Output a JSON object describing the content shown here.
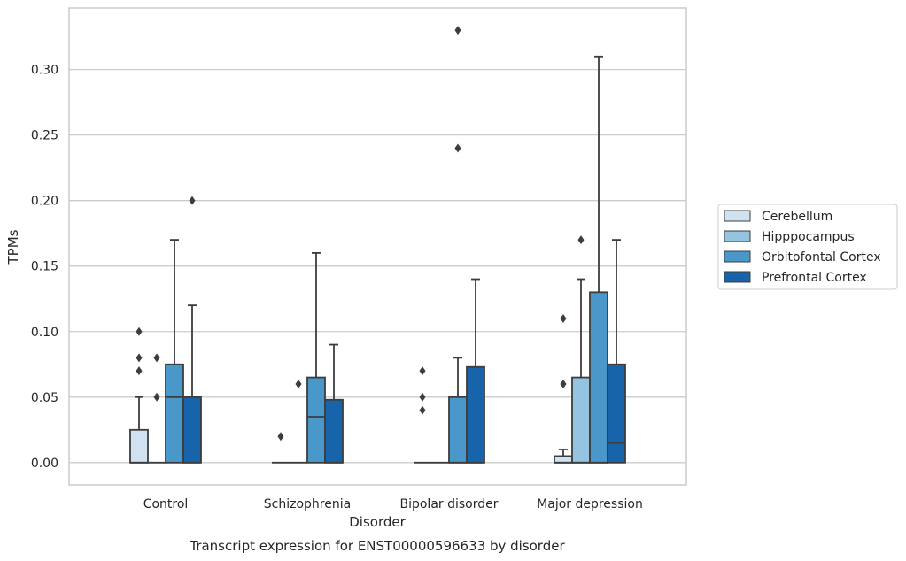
{
  "chart_data": {
    "type": "box",
    "title": "Transcript expression for ENST00000596633 by disorder",
    "xlabel": "Disorder",
    "ylabel": "TPMs",
    "categories": [
      "Control",
      "Schizophrenia",
      "Bipolar disorder",
      "Major depression"
    ],
    "ylim": [
      -0.017,
      0.347
    ],
    "yticks": [
      0.0,
      0.05,
      0.1,
      0.15,
      0.2,
      0.25,
      0.3
    ],
    "ytick_labels": [
      "0.00",
      "0.05",
      "0.10",
      "0.15",
      "0.20",
      "0.25",
      "0.30"
    ],
    "grid": true,
    "legend_position": "right",
    "series": [
      {
        "name": "Cerebellum",
        "color": "#d0e1f2",
        "boxes": [
          {
            "q1": 0,
            "median": 0,
            "q3": 0.025,
            "whisker_low": 0,
            "whisker_high": 0.05,
            "outliers": [
              0.07,
              0.08,
              0.1
            ]
          },
          {
            "q1": 0,
            "median": 0,
            "q3": 0,
            "whisker_low": 0,
            "whisker_high": 0,
            "outliers": [
              0.02
            ]
          },
          {
            "q1": 0,
            "median": 0,
            "q3": 0,
            "whisker_low": 0,
            "whisker_high": 0,
            "outliers": [
              0.04,
              0.05,
              0.07
            ]
          },
          {
            "q1": 0,
            "median": 0,
            "q3": 0.005,
            "whisker_low": 0,
            "whisker_high": 0.01,
            "outliers": [
              0.06,
              0.11
            ]
          }
        ]
      },
      {
        "name": "Hipppocampus",
        "color": "#94c4df",
        "boxes": [
          {
            "q1": 0,
            "median": 0,
            "q3": 0,
            "whisker_low": 0,
            "whisker_high": 0,
            "outliers": [
              0.05,
              0.08
            ]
          },
          {
            "q1": 0,
            "median": 0,
            "q3": 0,
            "whisker_low": 0,
            "whisker_high": 0,
            "outliers": [
              0.06
            ]
          },
          {
            "q1": 0,
            "median": 0,
            "q3": 0,
            "whisker_low": 0,
            "whisker_high": 0,
            "outliers": []
          },
          {
            "q1": 0,
            "median": 0,
            "q3": 0.065,
            "whisker_low": 0,
            "whisker_high": 0.14,
            "outliers": [
              0.17
            ]
          }
        ]
      },
      {
        "name": "Orbitofontal Cortex",
        "color": "#4a98c9",
        "boxes": [
          {
            "q1": 0,
            "median": 0.05,
            "q3": 0.075,
            "whisker_low": 0,
            "whisker_high": 0.17,
            "outliers": []
          },
          {
            "q1": 0,
            "median": 0.035,
            "q3": 0.065,
            "whisker_low": 0,
            "whisker_high": 0.16,
            "outliers": []
          },
          {
            "q1": 0,
            "median": 0,
            "q3": 0.05,
            "whisker_low": 0,
            "whisker_high": 0.08,
            "outliers": [
              0.24,
              0.33
            ]
          },
          {
            "q1": 0,
            "median": 0,
            "q3": 0.13,
            "whisker_low": 0,
            "whisker_high": 0.31,
            "outliers": []
          }
        ]
      },
      {
        "name": "Prefrontal Cortex",
        "color": "#1764ab",
        "boxes": [
          {
            "q1": 0,
            "median": 0,
            "q3": 0.05,
            "whisker_low": 0,
            "whisker_high": 0.12,
            "outliers": [
              0.2
            ]
          },
          {
            "q1": 0,
            "median": 0,
            "q3": 0.048,
            "whisker_low": 0,
            "whisker_high": 0.09,
            "outliers": []
          },
          {
            "q1": 0,
            "median": 0,
            "q3": 0.073,
            "whisker_low": 0,
            "whisker_high": 0.14,
            "outliers": []
          },
          {
            "q1": 0,
            "median": 0.015,
            "q3": 0.075,
            "whisker_low": 0,
            "whisker_high": 0.17,
            "outliers": []
          }
        ]
      }
    ]
  },
  "colors": {
    "line": "#3d3d3d",
    "grid": "#cccccc",
    "frame": "#cccccc",
    "text": "#262626"
  }
}
